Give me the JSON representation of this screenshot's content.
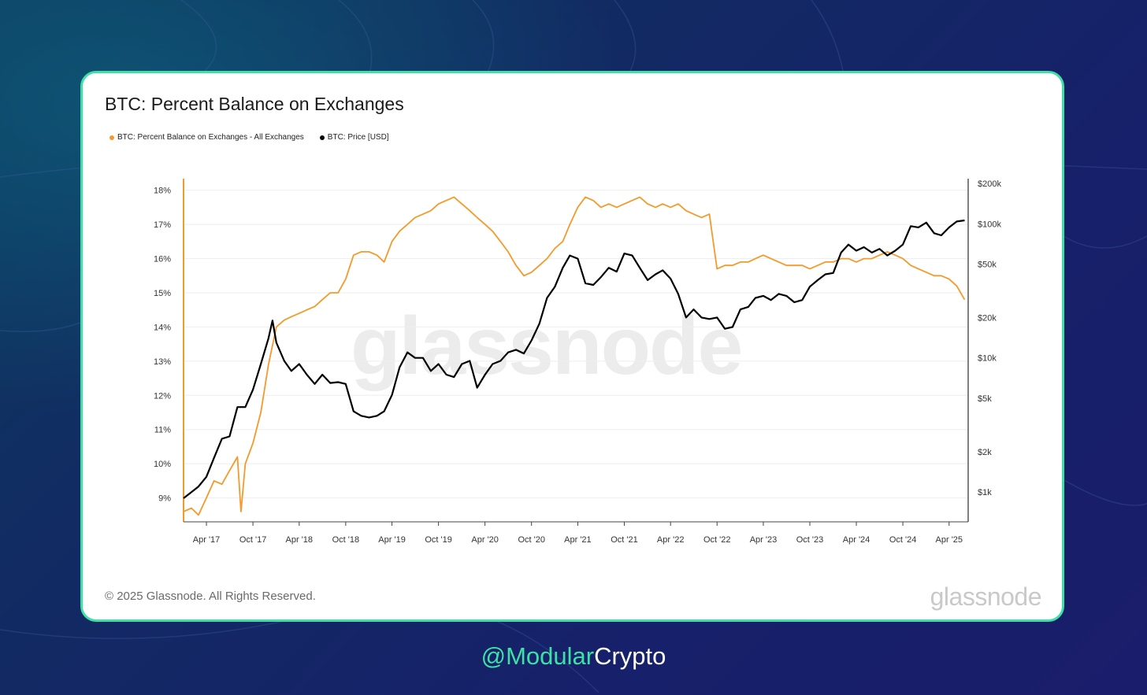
{
  "title": "BTC: Percent Balance on Exchanges",
  "legend": [
    {
      "label": "BTC: Percent Balance on Exchanges - All Exchanges",
      "color": "#f39a2b"
    },
    {
      "label": "BTC: Price [USD]",
      "color": "#000000"
    }
  ],
  "watermark": "glassnode",
  "copyright": "© 2025 Glassnode. All Rights Reserved.",
  "brand": "glassnode",
  "handle": {
    "prefix": "@",
    "accent": "Modular",
    "suffix": "Crypto"
  },
  "colors": {
    "card_border": "#3ee0a6",
    "balance": "#f39a2b",
    "price": "#000000"
  },
  "chart_data": {
    "type": "line",
    "title": "BTC: Percent Balance on Exchanges",
    "x_ticks": [
      "Apr '17",
      "Oct '17",
      "Apr '18",
      "Oct '18",
      "Apr '19",
      "Oct '19",
      "Apr '20",
      "Oct '20",
      "Apr '21",
      "Oct '21",
      "Apr '22",
      "Oct '22",
      "Apr '23",
      "Oct '23",
      "Apr '24",
      "Oct '24",
      "Apr '25"
    ],
    "x_range": [
      "2017-01-01",
      "2025-06-15"
    ],
    "y_left": {
      "ticks": [
        "9%",
        "10%",
        "11%",
        "12%",
        "13%",
        "14%",
        "15%",
        "16%",
        "17%",
        "18%"
      ],
      "ylim": [
        8.3,
        18.2
      ],
      "unit": "%"
    },
    "y_right": {
      "ticks": [
        "$1k",
        "$2k",
        "$5k",
        "$10k",
        "$20k",
        "$50k",
        "$100k",
        "$200k"
      ],
      "tick_values": [
        1000,
        2000,
        5000,
        10000,
        20000,
        50000,
        100000,
        200000
      ],
      "scale": "log",
      "ylim": [
        600,
        200000
      ]
    },
    "grid": true,
    "legend_position": "top-left",
    "series": [
      {
        "name": "BTC: Percent Balance on Exchanges - All Exchanges",
        "axis": "left",
        "color": "#f39a2b",
        "x": [
          "2017-01-01",
          "2017-02-01",
          "2017-03-01",
          "2017-04-01",
          "2017-05-01",
          "2017-06-01",
          "2017-07-01",
          "2017-08-01",
          "2017-08-15",
          "2017-09-01",
          "2017-10-01",
          "2017-11-01",
          "2017-12-01",
          "2018-01-01",
          "2018-02-01",
          "2018-03-01",
          "2018-04-01",
          "2018-05-01",
          "2018-06-01",
          "2018-07-01",
          "2018-08-01",
          "2018-09-01",
          "2018-10-01",
          "2018-11-01",
          "2018-12-01",
          "2019-01-01",
          "2019-02-01",
          "2019-03-01",
          "2019-04-01",
          "2019-05-01",
          "2019-06-01",
          "2019-07-01",
          "2019-08-01",
          "2019-09-01",
          "2019-10-01",
          "2019-11-01",
          "2019-12-01",
          "2020-01-01",
          "2020-02-01",
          "2020-03-01",
          "2020-04-01",
          "2020-05-01",
          "2020-06-01",
          "2020-07-01",
          "2020-08-01",
          "2020-09-01",
          "2020-10-01",
          "2020-11-01",
          "2020-12-01",
          "2021-01-01",
          "2021-02-01",
          "2021-03-01",
          "2021-04-01",
          "2021-05-01",
          "2021-06-01",
          "2021-07-01",
          "2021-08-01",
          "2021-09-01",
          "2021-10-01",
          "2021-11-01",
          "2021-12-01",
          "2022-01-01",
          "2022-02-01",
          "2022-03-01",
          "2022-04-01",
          "2022-05-01",
          "2022-06-01",
          "2022-07-01",
          "2022-08-01",
          "2022-09-01",
          "2022-10-01",
          "2022-11-01",
          "2022-12-01",
          "2023-01-01",
          "2023-02-01",
          "2023-03-01",
          "2023-04-01",
          "2023-05-01",
          "2023-06-01",
          "2023-07-01",
          "2023-08-01",
          "2023-09-01",
          "2023-10-01",
          "2023-11-01",
          "2023-12-01",
          "2024-01-01",
          "2024-02-01",
          "2024-03-01",
          "2024-04-01",
          "2024-05-01",
          "2024-06-01",
          "2024-07-01",
          "2024-08-01",
          "2024-09-01",
          "2024-10-01",
          "2024-11-01",
          "2024-12-01",
          "2025-01-01",
          "2025-02-01",
          "2025-03-01",
          "2025-04-01",
          "2025-05-01",
          "2025-06-01"
        ],
        "values": [
          8.6,
          8.7,
          8.5,
          9.0,
          9.5,
          9.4,
          9.8,
          10.2,
          8.6,
          10.0,
          10.6,
          11.5,
          12.9,
          14.0,
          14.2,
          14.3,
          14.4,
          14.5,
          14.6,
          14.8,
          15.0,
          15.0,
          15.4,
          16.1,
          16.2,
          16.2,
          16.1,
          15.9,
          16.5,
          16.8,
          17.0,
          17.2,
          17.3,
          17.4,
          17.6,
          17.7,
          17.8,
          17.6,
          17.4,
          17.2,
          17.0,
          16.8,
          16.5,
          16.2,
          15.8,
          15.5,
          15.6,
          15.8,
          16.0,
          16.3,
          16.5,
          17.0,
          17.5,
          17.8,
          17.7,
          17.5,
          17.6,
          17.5,
          17.6,
          17.7,
          17.8,
          17.6,
          17.5,
          17.6,
          17.5,
          17.6,
          17.4,
          17.3,
          17.2,
          17.3,
          15.7,
          15.8,
          15.8,
          15.9,
          15.9,
          16.0,
          16.1,
          16.0,
          15.9,
          15.8,
          15.8,
          15.8,
          15.7,
          15.8,
          15.9,
          15.9,
          16.0,
          16.0,
          15.9,
          16.0,
          16.0,
          16.1,
          16.2,
          16.1,
          16.0,
          15.8,
          15.7,
          15.6,
          15.5,
          15.5,
          15.4,
          15.2,
          14.8
        ]
      },
      {
        "name": "BTC: Price [USD]",
        "axis": "right",
        "color": "#000000",
        "x": [
          "2017-01-01",
          "2017-02-01",
          "2017-03-01",
          "2017-04-01",
          "2017-05-01",
          "2017-06-01",
          "2017-07-01",
          "2017-08-01",
          "2017-09-01",
          "2017-10-01",
          "2017-11-01",
          "2017-12-01",
          "2017-12-17",
          "2018-01-01",
          "2018-02-01",
          "2018-03-01",
          "2018-04-01",
          "2018-05-01",
          "2018-06-01",
          "2018-07-01",
          "2018-08-01",
          "2018-09-01",
          "2018-10-01",
          "2018-11-01",
          "2018-12-01",
          "2019-01-01",
          "2019-02-01",
          "2019-03-01",
          "2019-04-01",
          "2019-05-01",
          "2019-06-01",
          "2019-07-01",
          "2019-08-01",
          "2019-09-01",
          "2019-10-01",
          "2019-11-01",
          "2019-12-01",
          "2020-01-01",
          "2020-02-01",
          "2020-03-01",
          "2020-04-01",
          "2020-05-01",
          "2020-06-01",
          "2020-07-01",
          "2020-08-01",
          "2020-09-01",
          "2020-10-01",
          "2020-11-01",
          "2020-12-01",
          "2021-01-01",
          "2021-02-01",
          "2021-03-01",
          "2021-04-01",
          "2021-05-01",
          "2021-06-01",
          "2021-07-01",
          "2021-08-01",
          "2021-09-01",
          "2021-10-01",
          "2021-11-01",
          "2021-12-01",
          "2022-01-01",
          "2022-02-01",
          "2022-03-01",
          "2022-04-01",
          "2022-05-01",
          "2022-06-01",
          "2022-07-01",
          "2022-08-01",
          "2022-09-01",
          "2022-10-01",
          "2022-11-01",
          "2022-12-01",
          "2023-01-01",
          "2023-02-01",
          "2023-03-01",
          "2023-04-01",
          "2023-05-01",
          "2023-06-01",
          "2023-07-01",
          "2023-08-01",
          "2023-09-01",
          "2023-10-01",
          "2023-11-01",
          "2023-12-01",
          "2024-01-01",
          "2024-02-01",
          "2024-03-01",
          "2024-04-01",
          "2024-05-01",
          "2024-06-01",
          "2024-07-01",
          "2024-08-01",
          "2024-09-01",
          "2024-10-01",
          "2024-11-01",
          "2024-12-01",
          "2025-01-01",
          "2025-02-01",
          "2025-03-01",
          "2025-04-01",
          "2025-05-01",
          "2025-06-01"
        ],
        "values": [
          900,
          1000,
          1100,
          1300,
          1800,
          2500,
          2600,
          4300,
          4300,
          5800,
          9000,
          14000,
          19000,
          13000,
          9500,
          8000,
          9000,
          7500,
          6400,
          7500,
          6500,
          6600,
          6400,
          4000,
          3700,
          3600,
          3700,
          4000,
          5300,
          8500,
          11000,
          10000,
          10000,
          8000,
          9000,
          7500,
          7200,
          9000,
          9500,
          6000,
          7500,
          9000,
          9500,
          11000,
          11500,
          10800,
          13500,
          18000,
          28000,
          34000,
          47000,
          58000,
          55000,
          36000,
          35000,
          40000,
          47000,
          44000,
          60000,
          58000,
          47000,
          38000,
          42000,
          45000,
          39000,
          30000,
          20000,
          23000,
          20000,
          19500,
          20000,
          16500,
          17000,
          23000,
          24000,
          28000,
          29000,
          27000,
          30000,
          29000,
          26000,
          27000,
          34000,
          38000,
          42000,
          43000,
          61000,
          70000,
          63000,
          67000,
          61000,
          65000,
          58000,
          63000,
          70000,
          96000,
          94000,
          102000,
          85000,
          82000,
          94000,
          104000,
          106000
        ]
      }
    ]
  }
}
